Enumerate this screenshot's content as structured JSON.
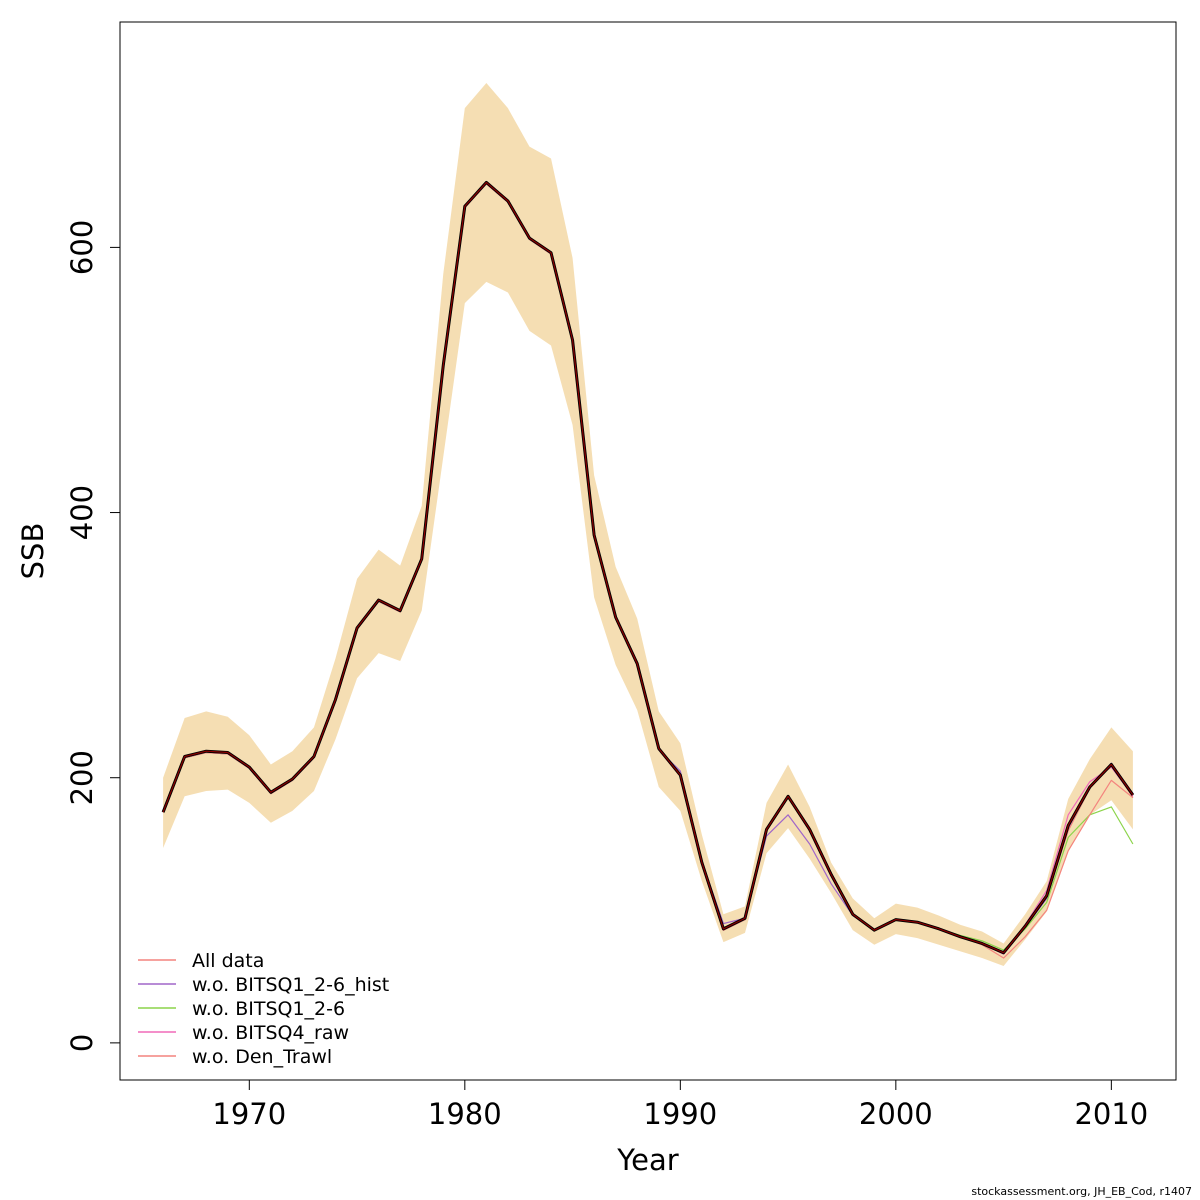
{
  "chart_data": {
    "type": "line",
    "xlabel": "Year",
    "ylabel": "SSB",
    "xlim": [
      1964,
      2013
    ],
    "ylim": [
      -28,
      770
    ],
    "x_ticks": [
      1970,
      1980,
      1990,
      2000,
      2010
    ],
    "y_ticks": [
      0,
      200,
      400,
      600
    ],
    "grid": false,
    "legend_position": "bottom-left",
    "band_color": "#f5deb3",
    "band": {
      "x": [
        1966,
        1967,
        1968,
        1969,
        1970,
        1971,
        1972,
        1973,
        1974,
        1975,
        1976,
        1977,
        1978,
        1979,
        1980,
        1981,
        1982,
        1983,
        1984,
        1985,
        1986,
        1987,
        1988,
        1989,
        1990,
        1991,
        1992,
        1993,
        1994,
        1995,
        1996,
        1997,
        1998,
        1999,
        2000,
        2001,
        2002,
        2003,
        2004,
        2005,
        2006,
        2007,
        2008,
        2009,
        2010,
        2011
      ],
      "lower": [
        147,
        186,
        190,
        191,
        181,
        166,
        175,
        190,
        229,
        275,
        294,
        288,
        326,
        442,
        558,
        574,
        566,
        537,
        526,
        466,
        336,
        285,
        251,
        193,
        175,
        122,
        76,
        83,
        143,
        162,
        139,
        113,
        85,
        74,
        82,
        79,
        74,
        69,
        64,
        58,
        78,
        99,
        144,
        172,
        183,
        161
      ],
      "upper": [
        200,
        245,
        250,
        246,
        232,
        210,
        220,
        238,
        290,
        350,
        372,
        360,
        405,
        580,
        705,
        724,
        705,
        676,
        667,
        592,
        428,
        359,
        320,
        250,
        226,
        157,
        97,
        103,
        181,
        210,
        178,
        136,
        109,
        94,
        105,
        102,
        96,
        89,
        84,
        75,
        97,
        122,
        184,
        214,
        238,
        220
      ]
    },
    "series": [
      {
        "name": "All data",
        "color": "#f4847e",
        "values": [
          174,
          215,
          219,
          218,
          207,
          188,
          198,
          215,
          258,
          312,
          333,
          325,
          364,
          510,
          630,
          648,
          634,
          606,
          595,
          529,
          382,
          320,
          285,
          221,
          201,
          135,
          85,
          93,
          160,
          185,
          160,
          126,
          97,
          85,
          93,
          91,
          86,
          80,
          75,
          67,
          87,
          109,
          160,
          192,
          210,
          185
        ]
      },
      {
        "name": "w.o. BITSQ1_2-6_hist",
        "color": "#a066c9",
        "values": [
          174,
          215,
          219,
          218,
          207,
          188,
          198,
          215,
          258,
          312,
          333,
          325,
          364,
          510,
          630,
          648,
          634,
          606,
          595,
          529,
          382,
          320,
          285,
          221,
          205,
          137,
          90,
          94,
          156,
          172,
          150,
          120,
          96,
          85,
          93,
          91,
          86,
          80,
          75,
          67,
          87,
          109,
          162,
          193,
          211,
          188
        ]
      },
      {
        "name": "w.o. BITSQ1_2-6",
        "color": "#8cd44a",
        "values": [
          174,
          215,
          219,
          218,
          207,
          188,
          198,
          215,
          258,
          312,
          333,
          325,
          364,
          510,
          630,
          648,
          634,
          606,
          595,
          529,
          382,
          320,
          285,
          221,
          201,
          135,
          85,
          93,
          160,
          185,
          160,
          126,
          97,
          85,
          93,
          91,
          86,
          81,
          77,
          70,
          86,
          106,
          155,
          172,
          178,
          150
        ]
      },
      {
        "name": "w.o. BITSQ4_raw",
        "color": "#f06ab8",
        "values": [
          174,
          215,
          219,
          218,
          207,
          188,
          198,
          215,
          258,
          312,
          333,
          325,
          364,
          510,
          630,
          648,
          634,
          606,
          595,
          529,
          382,
          320,
          285,
          221,
          201,
          135,
          85,
          93,
          160,
          185,
          160,
          126,
          97,
          85,
          93,
          91,
          86,
          80,
          75,
          67,
          89,
          115,
          172,
          197,
          208,
          186
        ]
      },
      {
        "name": "w.o. Den_Trawl",
        "color": "#f4847e",
        "values": [
          174,
          215,
          219,
          218,
          207,
          188,
          198,
          215,
          258,
          312,
          333,
          325,
          364,
          510,
          630,
          648,
          634,
          606,
          595,
          529,
          382,
          320,
          285,
          221,
          201,
          135,
          85,
          93,
          160,
          185,
          160,
          126,
          97,
          85,
          93,
          91,
          86,
          80,
          74,
          64,
          80,
          100,
          145,
          172,
          198,
          185
        ]
      }
    ],
    "central": {
      "color": "#000000",
      "values": [
        174,
        216,
        220,
        219,
        208,
        189,
        199,
        216,
        259,
        313,
        334,
        326,
        365,
        511,
        631,
        649,
        635,
        607,
        596,
        530,
        383,
        321,
        286,
        222,
        202,
        136,
        86,
        94,
        161,
        186,
        161,
        127,
        97,
        85,
        93,
        91,
        86,
        80,
        75,
        68,
        88,
        111,
        164,
        193,
        210,
        187
      ]
    },
    "central_overlay_color": "#8b0000"
  },
  "footer": "stockassessment.org, JH_EB_Cod, r1407"
}
